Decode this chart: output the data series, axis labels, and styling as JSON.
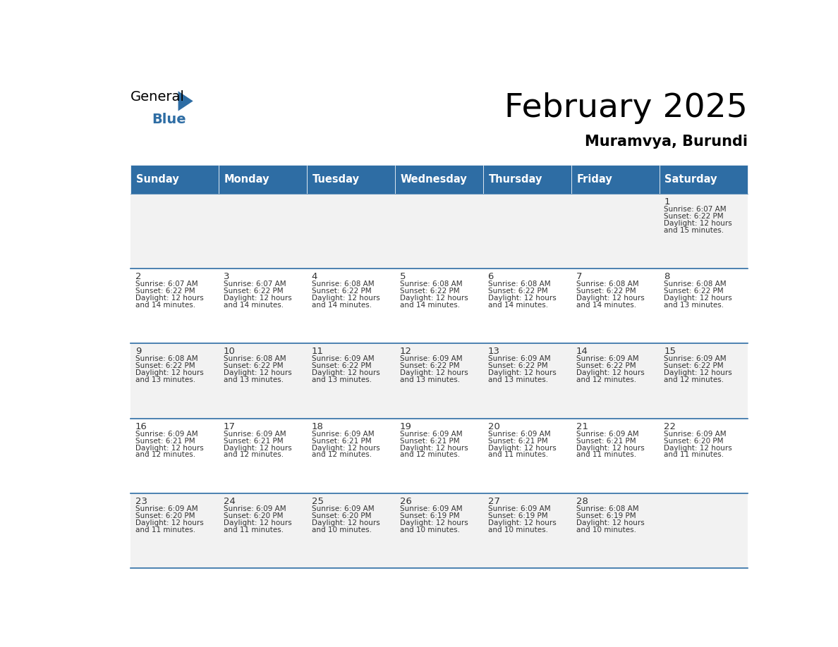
{
  "title": "February 2025",
  "subtitle": "Muramvya, Burundi",
  "header_bg": "#2E6DA4",
  "header_text_color": "#FFFFFF",
  "cell_bg_white": "#FFFFFF",
  "cell_bg_gray": "#F2F2F2",
  "text_color": "#333333",
  "border_color": "#2E6DA4",
  "days_of_week": [
    "Sunday",
    "Monday",
    "Tuesday",
    "Wednesday",
    "Thursday",
    "Friday",
    "Saturday"
  ],
  "calendar": [
    [
      {
        "day": null,
        "sunrise": null,
        "sunset": null,
        "daylight": null
      },
      {
        "day": null,
        "sunrise": null,
        "sunset": null,
        "daylight": null
      },
      {
        "day": null,
        "sunrise": null,
        "sunset": null,
        "daylight": null
      },
      {
        "day": null,
        "sunrise": null,
        "sunset": null,
        "daylight": null
      },
      {
        "day": null,
        "sunrise": null,
        "sunset": null,
        "daylight": null
      },
      {
        "day": null,
        "sunrise": null,
        "sunset": null,
        "daylight": null
      },
      {
        "day": 1,
        "sunrise": "6:07 AM",
        "sunset": "6:22 PM",
        "daylight": "12 hours\nand 15 minutes."
      }
    ],
    [
      {
        "day": 2,
        "sunrise": "6:07 AM",
        "sunset": "6:22 PM",
        "daylight": "12 hours\nand 14 minutes."
      },
      {
        "day": 3,
        "sunrise": "6:07 AM",
        "sunset": "6:22 PM",
        "daylight": "12 hours\nand 14 minutes."
      },
      {
        "day": 4,
        "sunrise": "6:08 AM",
        "sunset": "6:22 PM",
        "daylight": "12 hours\nand 14 minutes."
      },
      {
        "day": 5,
        "sunrise": "6:08 AM",
        "sunset": "6:22 PM",
        "daylight": "12 hours\nand 14 minutes."
      },
      {
        "day": 6,
        "sunrise": "6:08 AM",
        "sunset": "6:22 PM",
        "daylight": "12 hours\nand 14 minutes."
      },
      {
        "day": 7,
        "sunrise": "6:08 AM",
        "sunset": "6:22 PM",
        "daylight": "12 hours\nand 14 minutes."
      },
      {
        "day": 8,
        "sunrise": "6:08 AM",
        "sunset": "6:22 PM",
        "daylight": "12 hours\nand 13 minutes."
      }
    ],
    [
      {
        "day": 9,
        "sunrise": "6:08 AM",
        "sunset": "6:22 PM",
        "daylight": "12 hours\nand 13 minutes."
      },
      {
        "day": 10,
        "sunrise": "6:08 AM",
        "sunset": "6:22 PM",
        "daylight": "12 hours\nand 13 minutes."
      },
      {
        "day": 11,
        "sunrise": "6:09 AM",
        "sunset": "6:22 PM",
        "daylight": "12 hours\nand 13 minutes."
      },
      {
        "day": 12,
        "sunrise": "6:09 AM",
        "sunset": "6:22 PM",
        "daylight": "12 hours\nand 13 minutes."
      },
      {
        "day": 13,
        "sunrise": "6:09 AM",
        "sunset": "6:22 PM",
        "daylight": "12 hours\nand 13 minutes."
      },
      {
        "day": 14,
        "sunrise": "6:09 AM",
        "sunset": "6:22 PM",
        "daylight": "12 hours\nand 12 minutes."
      },
      {
        "day": 15,
        "sunrise": "6:09 AM",
        "sunset": "6:22 PM",
        "daylight": "12 hours\nand 12 minutes."
      }
    ],
    [
      {
        "day": 16,
        "sunrise": "6:09 AM",
        "sunset": "6:21 PM",
        "daylight": "12 hours\nand 12 minutes."
      },
      {
        "day": 17,
        "sunrise": "6:09 AM",
        "sunset": "6:21 PM",
        "daylight": "12 hours\nand 12 minutes."
      },
      {
        "day": 18,
        "sunrise": "6:09 AM",
        "sunset": "6:21 PM",
        "daylight": "12 hours\nand 12 minutes."
      },
      {
        "day": 19,
        "sunrise": "6:09 AM",
        "sunset": "6:21 PM",
        "daylight": "12 hours\nand 12 minutes."
      },
      {
        "day": 20,
        "sunrise": "6:09 AM",
        "sunset": "6:21 PM",
        "daylight": "12 hours\nand 11 minutes."
      },
      {
        "day": 21,
        "sunrise": "6:09 AM",
        "sunset": "6:21 PM",
        "daylight": "12 hours\nand 11 minutes."
      },
      {
        "day": 22,
        "sunrise": "6:09 AM",
        "sunset": "6:20 PM",
        "daylight": "12 hours\nand 11 minutes."
      }
    ],
    [
      {
        "day": 23,
        "sunrise": "6:09 AM",
        "sunset": "6:20 PM",
        "daylight": "12 hours\nand 11 minutes."
      },
      {
        "day": 24,
        "sunrise": "6:09 AM",
        "sunset": "6:20 PM",
        "daylight": "12 hours\nand 11 minutes."
      },
      {
        "day": 25,
        "sunrise": "6:09 AM",
        "sunset": "6:20 PM",
        "daylight": "12 hours\nand 10 minutes."
      },
      {
        "day": 26,
        "sunrise": "6:09 AM",
        "sunset": "6:19 PM",
        "daylight": "12 hours\nand 10 minutes."
      },
      {
        "day": 27,
        "sunrise": "6:09 AM",
        "sunset": "6:19 PM",
        "daylight": "12 hours\nand 10 minutes."
      },
      {
        "day": 28,
        "sunrise": "6:08 AM",
        "sunset": "6:19 PM",
        "daylight": "12 hours\nand 10 minutes."
      },
      {
        "day": null,
        "sunrise": null,
        "sunset": null,
        "daylight": null
      }
    ]
  ]
}
